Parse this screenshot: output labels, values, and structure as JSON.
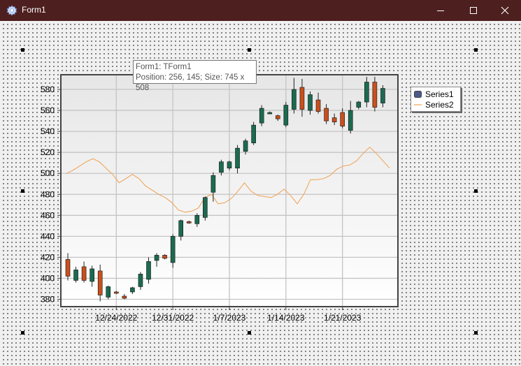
{
  "window": {
    "title": "Form1",
    "icon": "gear-icon",
    "minimize_icon": "minimize-icon",
    "maximize_icon": "maximize-icon",
    "close_icon": "close-icon",
    "titlebar_color": "#4e1f1f"
  },
  "hint": {
    "line1": "Form1: TForm1",
    "line2": "Position: 256, 145; Size: 745 x 508"
  },
  "legend": {
    "series1": "Series1",
    "series2": "Series2"
  },
  "colors": {
    "up": "#1b6b50",
    "down": "#c8501e",
    "line": "#f0a050",
    "legend_swatch": "#4a5a8a"
  },
  "chart_data": {
    "type": "candlestick",
    "x_tick_labels": [
      "12/24/2022",
      "12/31/2022",
      "1/7/2023",
      "1/14/2023",
      "1/21/2023"
    ],
    "y_ticks": [
      380,
      400,
      420,
      440,
      460,
      480,
      500,
      520,
      540,
      560,
      580
    ],
    "ylim": [
      373,
      594
    ],
    "grid": true,
    "legend_position": "top-right",
    "series": [
      {
        "name": "Series1",
        "kind": "ohlc",
        "start_date": "2022-12-18",
        "ohlc": [
          [
            418,
            424,
            398,
            402
          ],
          [
            398,
            411,
            396,
            408
          ],
          [
            411,
            416,
            396,
            398
          ],
          [
            397,
            412,
            392,
            409
          ],
          [
            407,
            413,
            378,
            384
          ],
          [
            382,
            393,
            380,
            392
          ],
          [
            387,
            388,
            385,
            386
          ],
          [
            383,
            385,
            380,
            381
          ],
          [
            387,
            392,
            385,
            391
          ],
          [
            392,
            406,
            389,
            404
          ],
          [
            399,
            420,
            395,
            416
          ],
          [
            417,
            424,
            411,
            422
          ],
          [
            422,
            423,
            418,
            419
          ],
          [
            415,
            442,
            410,
            440
          ],
          [
            440,
            456,
            436,
            455
          ],
          [
            454,
            455,
            452,
            453
          ],
          [
            452,
            462,
            449,
            460
          ],
          [
            458,
            478,
            455,
            477
          ],
          [
            482,
            501,
            473,
            498
          ],
          [
            501,
            513,
            498,
            511
          ],
          [
            505,
            512,
            503,
            511
          ],
          [
            505,
            527,
            500,
            524
          ],
          [
            521,
            533,
            518,
            531
          ],
          [
            529,
            549,
            527,
            546
          ],
          [
            548,
            565,
            545,
            562
          ],
          [
            558,
            559,
            557,
            558
          ],
          [
            555,
            556,
            550,
            552
          ],
          [
            546,
            568,
            544,
            565
          ],
          [
            561,
            591,
            557,
            580
          ],
          [
            582,
            590,
            554,
            561
          ],
          [
            560,
            578,
            556,
            575
          ],
          [
            570,
            577,
            557,
            559
          ],
          [
            562,
            566,
            547,
            550
          ],
          [
            553,
            557,
            546,
            549
          ],
          [
            558,
            562,
            543,
            545
          ],
          [
            541,
            569,
            538,
            560
          ],
          [
            563,
            569,
            561,
            568
          ],
          [
            568,
            592,
            563,
            587
          ],
          [
            587,
            592,
            559,
            563
          ],
          [
            567,
            584,
            563,
            581
          ]
        ]
      },
      {
        "name": "Series2",
        "kind": "line",
        "values": [
          500,
          503,
          507,
          511,
          514,
          511,
          505,
          499,
          491,
          495,
          499,
          495,
          488,
          484,
          480,
          477,
          472,
          465,
          463,
          464,
          467,
          477,
          480,
          471,
          472,
          476,
          483,
          491,
          483,
          479,
          478,
          477,
          480,
          485,
          479,
          471,
          480,
          494,
          494,
          495,
          498,
          504,
          507,
          508,
          512,
          519,
          525,
          519,
          512,
          505
        ]
      }
    ]
  }
}
